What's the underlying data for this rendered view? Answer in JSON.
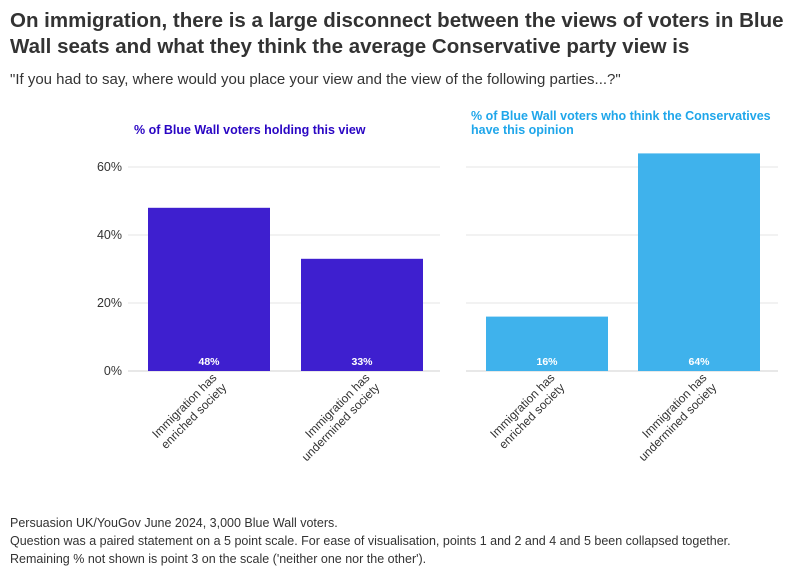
{
  "title": "On immigration, there is a large disconnect between the views of voters in Blue Wall seats and what they think the average Conservative party view is",
  "subtitle": "\"If you had to say, where would you place your view and the view of the following parties...?\"",
  "colors": {
    "panel_1": "#3e1fcf",
    "panel_2": "#3fb2ec",
    "panel_1_title": "#2a06c4",
    "panel_2_title": "#1fa6ea"
  },
  "chart_data": [
    {
      "type": "bar",
      "title": "% of Blue Wall voters holding this view",
      "categories": [
        "Immigration has enriched society",
        "Immigration has undermined society"
      ],
      "category_label_lines": [
        [
          "Immigration has",
          "enriched society"
        ],
        [
          "Immigration has",
          "undermined society"
        ]
      ],
      "values": [
        48,
        33
      ],
      "data_labels": [
        "48%",
        "33%"
      ],
      "ylim": [
        0,
        65
      ],
      "yticks": [
        0,
        20,
        40,
        60
      ],
      "ytick_labels": [
        "0%",
        "20%",
        "40%",
        "60%"
      ],
      "grid": true,
      "xlabel": "",
      "ylabel": ""
    },
    {
      "type": "bar",
      "title_lines": [
        "% of Blue Wall voters who think the Conservatives",
        "have this opinion"
      ],
      "categories": [
        "Immigration has enriched society",
        "Immigration has undermined society"
      ],
      "category_label_lines": [
        [
          "Immigration has",
          "enriched society"
        ],
        [
          "Immigration has",
          "undermined society"
        ]
      ],
      "values": [
        16,
        64
      ],
      "data_labels": [
        "16%",
        "64%"
      ],
      "ylim": [
        0,
        65
      ],
      "grid": true,
      "xlabel": "",
      "ylabel": ""
    }
  ],
  "footnotes": [
    "Persuasion UK/YouGov June 2024, 3,000 Blue Wall voters.",
    "Question was a paired statement on a 5 point scale. For ease of visualisation, points 1 and 2 and 4 and 5 been collapsed together.",
    "Remaining % not shown is point 3 on the scale ('neither one nor the other')."
  ]
}
